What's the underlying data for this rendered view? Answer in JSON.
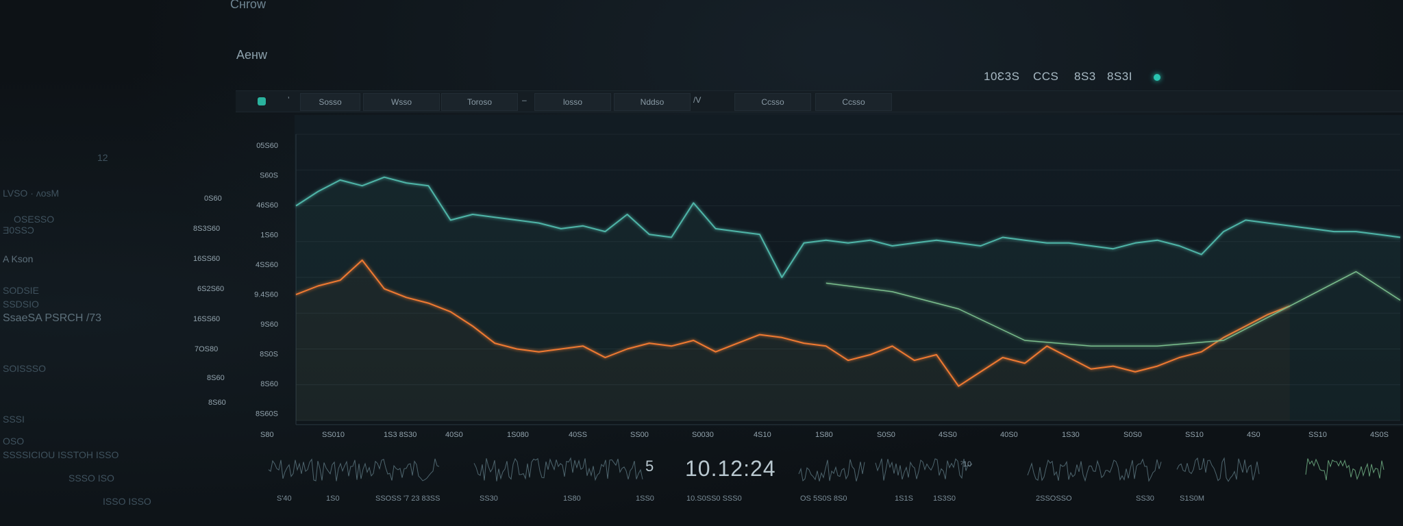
{
  "header": {
    "title": "Cнrow",
    "subtitle": "Aeнw"
  },
  "stats": {
    "items": [
      "10Ɛ3S",
      "CCS",
      "8S3",
      "8S3I"
    ]
  },
  "colors": {
    "teal": "#4fb5a8",
    "orange": "#f07a32",
    "green": "#7bbf8e",
    "status": "#29c4b0"
  },
  "toolbar": {
    "icon_name": "app-logo-icon",
    "items": [
      {
        "label": "ʼ"
      },
      {
        "label": "Sosso"
      },
      {
        "label": "Wsso"
      },
      {
        "label": "Toroso"
      },
      {
        "label": "–"
      },
      {
        "label": "losso"
      },
      {
        "label": "Nddso"
      },
      {
        "label": "/V"
      },
      {
        "label": "Ccsso"
      },
      {
        "label": "Ccsso"
      }
    ]
  },
  "left_panel": {
    "texts": [
      "12",
      "LVSO        · ʌoѕM",
      "OSESSO",
      "Ǝ0SSƆ",
      "A Kson",
      "SODSIE",
      "SSDSIO",
      "SsaeSA PSRCH /73",
      "SOISSSO",
      "SSSI",
      "OSO",
      "SSSSICIOU ISSTOH ISSO",
      "SSSO ISO",
      "ISSO ISSO"
    ]
  },
  "y_axis": {
    "outer": [
      "0S60",
      "8S3S60",
      "16SS60",
      "6S2S60",
      "16SS60",
      "7OS80",
      "8S60",
      "8S60"
    ],
    "inner": [
      "05S60",
      "S60S",
      "46S60",
      "1S60",
      "4SS60",
      "9.4S60",
      "9S60",
      "8S0S",
      "8S60",
      "8S60S"
    ]
  },
  "x_axis": {
    "ticks": [
      "S80",
      "SS010",
      "1S3 8S30",
      "40S0",
      "1S080",
      "40SS",
      "SS00",
      "S0030",
      "4S10",
      "1S80",
      "S0S0",
      "4SS0",
      "40S0",
      "1S30",
      "S0S0",
      "SS10",
      "4S0",
      "SS10",
      "4S0S"
    ]
  },
  "chart_data": {
    "type": "line",
    "title": "",
    "xlabel": "",
    "ylabel": "",
    "x_range": [
      0,
      100
    ],
    "y_range": [
      0,
      100
    ],
    "grid": true,
    "series": [
      {
        "color": "#4fb5a8",
        "x": [
          0,
          2,
          4,
          6,
          8,
          10,
          12,
          14,
          16,
          18,
          20,
          22,
          24,
          26,
          28,
          30,
          32,
          34,
          36,
          38,
          40,
          42,
          44,
          46,
          48,
          50,
          52,
          54,
          56,
          58,
          60,
          62,
          64,
          66,
          68,
          70,
          72,
          74,
          76,
          78,
          80,
          82,
          84,
          86,
          88,
          90,
          92,
          94,
          96,
          98,
          100
        ],
        "values": [
          75,
          80,
          84,
          82,
          85,
          83,
          82,
          70,
          72,
          71,
          70,
          69,
          67,
          68,
          66,
          72,
          65,
          64,
          76,
          67,
          66,
          65,
          50,
          62,
          63,
          62,
          63,
          61,
          62,
          63,
          62,
          61,
          64,
          63,
          62,
          62,
          61,
          60,
          62,
          63,
          61,
          58,
          66,
          70,
          69,
          68,
          67,
          66,
          66,
          65,
          64
        ]
      },
      {
        "color": "#f07a32",
        "x": [
          0,
          2,
          4,
          6,
          8,
          10,
          12,
          14,
          16,
          18,
          20,
          22,
          24,
          26,
          28,
          30,
          32,
          34,
          36,
          38,
          40,
          42,
          44,
          46,
          48,
          50,
          52,
          54,
          56,
          58,
          60,
          62,
          64,
          66,
          68,
          70,
          72,
          74,
          76,
          78,
          80,
          82,
          84,
          86,
          88,
          90
        ],
        "values": [
          44,
          47,
          49,
          56,
          46,
          43,
          41,
          38,
          33,
          27,
          25,
          24,
          25,
          26,
          22,
          25,
          27,
          26,
          28,
          24,
          27,
          30,
          29,
          27,
          26,
          21,
          23,
          26,
          21,
          23,
          12,
          17,
          22,
          20,
          26,
          22,
          18,
          19,
          17,
          19,
          22,
          24,
          29,
          33,
          37,
          40
        ]
      },
      {
        "color": "#7bbf8e",
        "x": [
          48,
          54,
          60,
          66,
          72,
          78,
          84,
          88,
          92,
          96,
          100
        ],
        "values": [
          48,
          45,
          39,
          28,
          26,
          26,
          28,
          36,
          44,
          52,
          42
        ]
      }
    ]
  },
  "bottom": {
    "digit": "5",
    "timestamp": "10.12:24",
    "labels": [
      "S'40",
      "1S0",
      "SSOSS '7 23 83SS",
      "SS30",
      "1S80",
      "1SS0",
      "10.S0SS0 SSS0",
      "OS 5S0S 8S0",
      "1S1S",
      "1S3S0",
      "2SSOSSO",
      "SS30",
      "S1S0M"
    ],
    "mini_value": "ˀ10"
  }
}
